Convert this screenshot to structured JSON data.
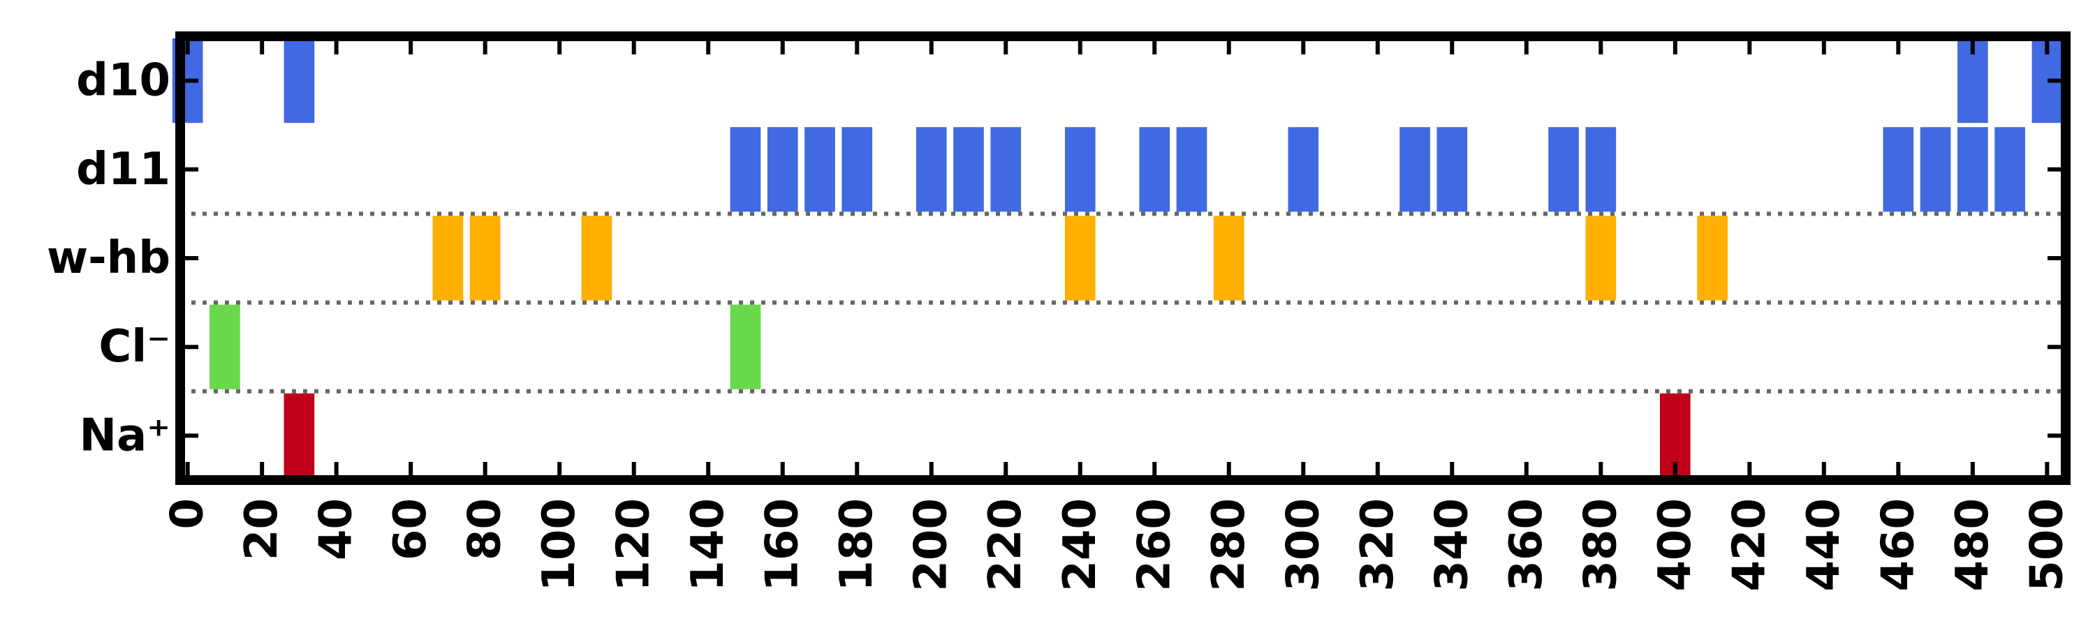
{
  "chart_data": {
    "type": "event_raster",
    "title": "",
    "xlabel": "",
    "ylabel": "",
    "xlim": [
      -2,
      505
    ],
    "x_ticks": [
      0,
      20,
      40,
      60,
      80,
      100,
      120,
      140,
      160,
      180,
      200,
      220,
      240,
      260,
      280,
      300,
      320,
      340,
      360,
      380,
      400,
      420,
      440,
      460,
      480,
      500
    ],
    "x_tick_labels": [
      "0",
      "20",
      "40",
      "60",
      "80",
      "100",
      "120",
      "140",
      "160",
      "180",
      "200",
      "220",
      "240",
      "260",
      "280",
      "300",
      "320",
      "340",
      "360",
      "380",
      "400",
      "420",
      "440",
      "460",
      "480",
      "500"
    ],
    "categories": [
      "d10",
      "d11",
      "w-hb",
      "Cl⁻",
      "Na⁺"
    ],
    "separators_after_rows": [
      1,
      2,
      3
    ],
    "grid": false,
    "series": [
      {
        "name": "d10",
        "color": "#4169e1",
        "x": [
          0,
          30,
          480,
          500
        ]
      },
      {
        "name": "d11",
        "color": "#4169e1",
        "x": [
          150,
          160,
          170,
          180,
          200,
          210,
          220,
          240,
          260,
          270,
          300,
          330,
          340,
          370,
          380,
          460,
          470,
          480,
          490
        ]
      },
      {
        "name": "w-hb",
        "color": "#ffb000",
        "x": [
          70,
          80,
          110,
          240,
          280,
          380,
          410
        ]
      },
      {
        "name": "Cl⁻",
        "color": "#6ad84b",
        "x": [
          10,
          150
        ]
      },
      {
        "name": "Na⁺",
        "color": "#c0001a",
        "x": [
          30,
          400
        ]
      }
    ]
  }
}
